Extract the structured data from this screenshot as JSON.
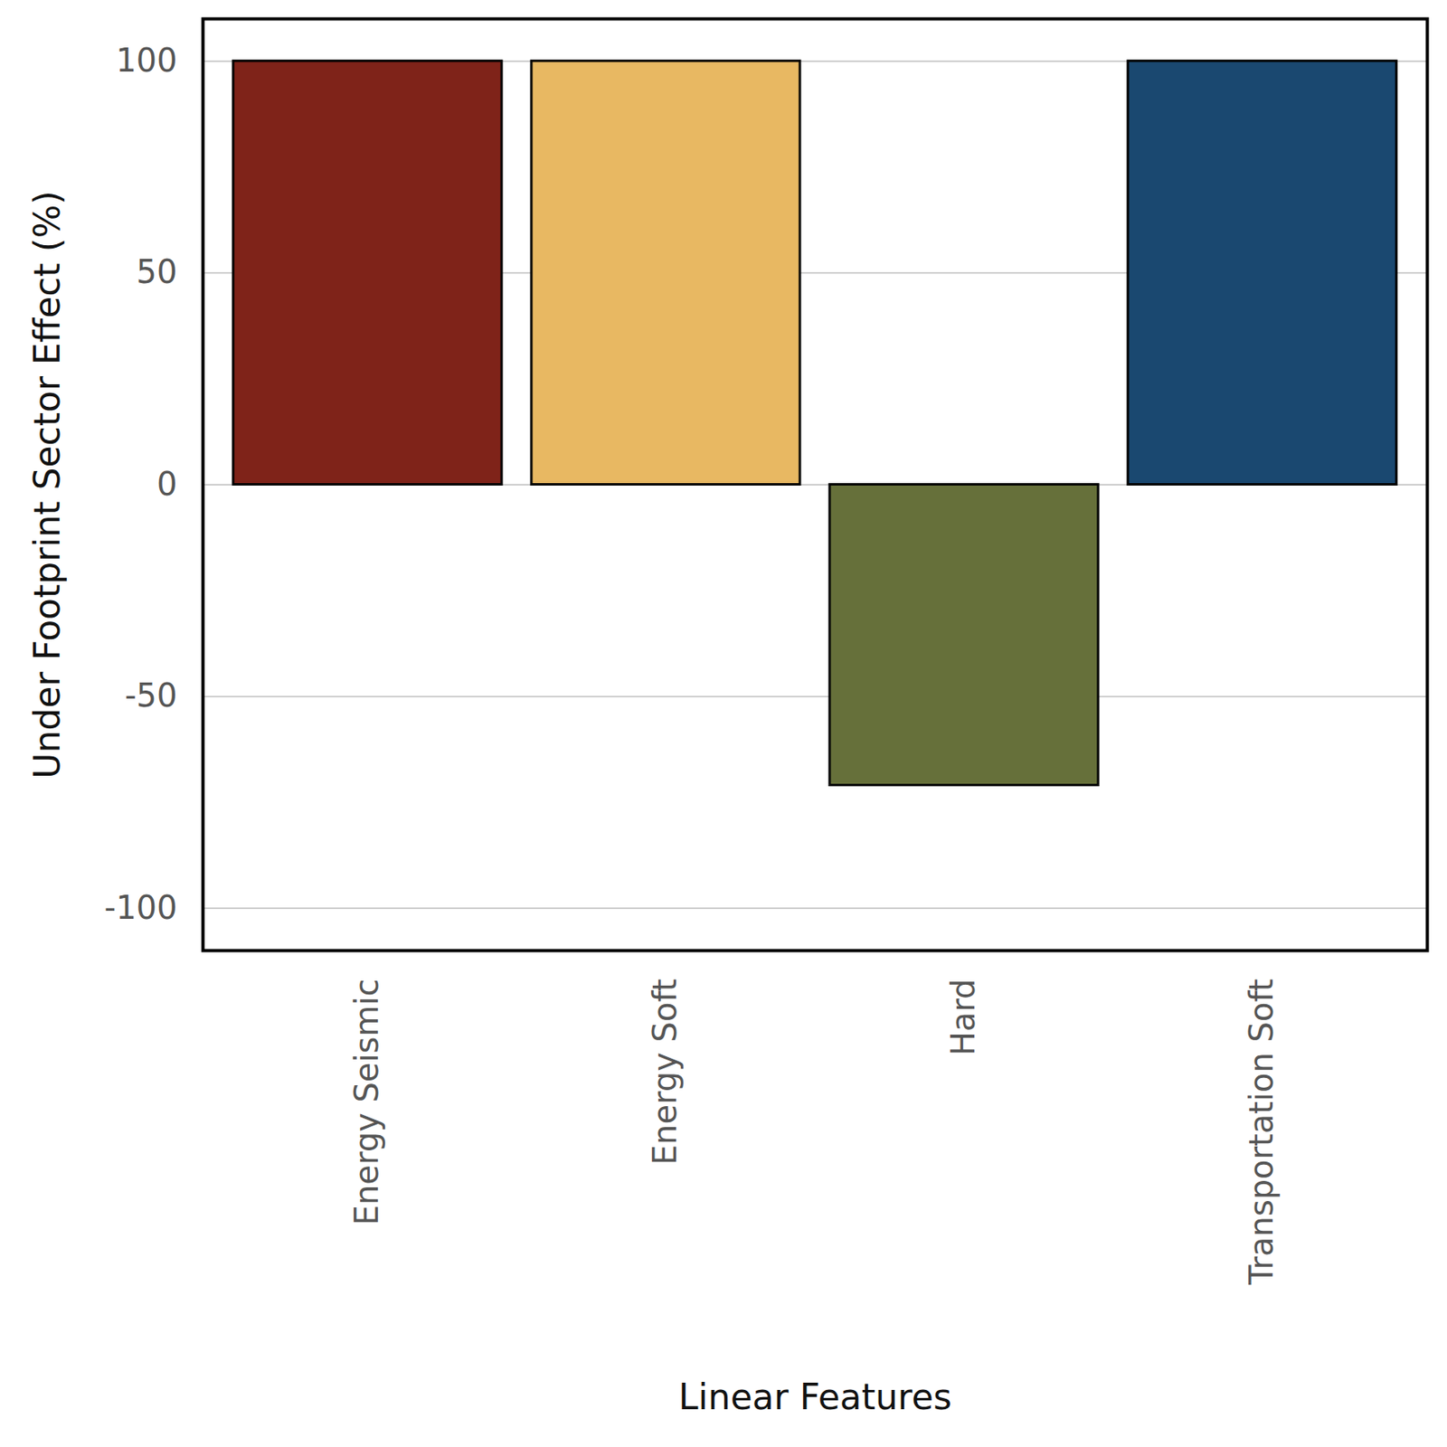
{
  "chart_data": {
    "type": "bar",
    "xlabel": "Linear Features",
    "ylabel": "Under Footprint Sector Effect (%)",
    "categories": [
      "Energy Seismic",
      "Energy Soft",
      "Hard",
      "Transportation Soft"
    ],
    "values": [
      100,
      100,
      -71,
      100
    ],
    "colors": [
      "#7f2319",
      "#e8b862",
      "#66703a",
      "#1a4870"
    ],
    "ylim": [
      -110,
      110
    ],
    "yticks": [
      -100,
      -50,
      0,
      50,
      100
    ],
    "grid": true
  }
}
